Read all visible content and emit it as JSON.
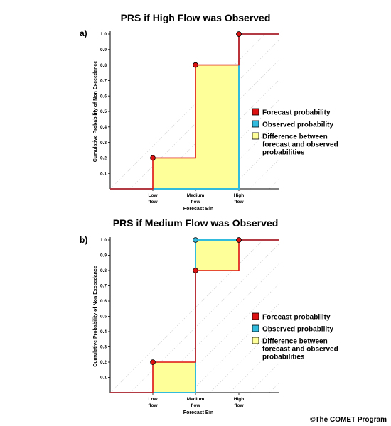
{
  "copyright": "©The COMET Program",
  "colors": {
    "forecast": "#dd1111",
    "observed": "#33bbdd",
    "difference": "#ffff99",
    "guide": "#cccccc",
    "axis": "#000000"
  },
  "chart_data": [
    {
      "type": "line",
      "panel_label": "a)",
      "title": "PRS if High Flow was Observed",
      "xlabel": "Forecast Bin",
      "ylabel": "Cumulative Probability of Non Exceedance",
      "categories": [
        "Low\nflow",
        "Medium\nflow",
        "High\nflow"
      ],
      "yticks": [
        "0.1",
        "0.2",
        "0.3",
        "0.4",
        "0.5",
        "0.6",
        "0.7",
        "0.8",
        "0.9",
        "1.0"
      ],
      "ylim": [
        0,
        1.0
      ],
      "grid": false,
      "legend_position": "right",
      "series": [
        {
          "name": "Forecast probability",
          "values": [
            0.2,
            0.8,
            1.0
          ]
        },
        {
          "name": "Observed probability",
          "values": [
            0.0,
            0.0,
            1.0
          ]
        }
      ],
      "shaded_label": "Difference between\nforecast and observed\nprobabilities"
    },
    {
      "type": "line",
      "panel_label": "b)",
      "title": "PRS if Medium Flow was Observed",
      "xlabel": "Forecast Bin",
      "ylabel": "Cumulative Probability of Non Exceedance",
      "categories": [
        "Low\nflow",
        "Medium\nflow",
        "High\nflow"
      ],
      "yticks": [
        "0.1",
        "0.2",
        "0.3",
        "0.4",
        "0.5",
        "0.6",
        "0.7",
        "0.8",
        "0.9",
        "1.0"
      ],
      "ylim": [
        0,
        1.0
      ],
      "grid": false,
      "legend_position": "right",
      "series": [
        {
          "name": "Forecast probability",
          "values": [
            0.2,
            0.8,
            1.0
          ]
        },
        {
          "name": "Observed probability",
          "values": [
            0.0,
            1.0,
            1.0
          ]
        }
      ],
      "shaded_label": "Difference between\nforecast and observed\nprobabilities"
    }
  ]
}
